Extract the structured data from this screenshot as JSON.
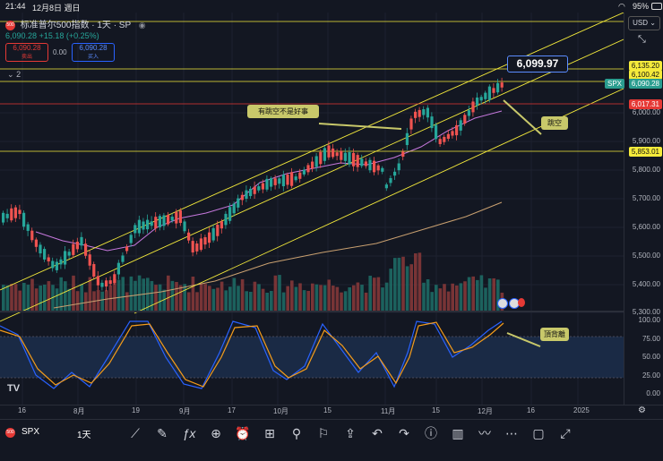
{
  "status_bar": {
    "time": "21:44",
    "date": "12月8日 週日",
    "battery": "95%"
  },
  "header": {
    "symbol_badge": "500",
    "title": "标准普尔500指数 · 1天 · SP",
    "last": "6,090.28",
    "change": "+15.18 (+0.25%)",
    "sell_price": "6,090.28",
    "sell_label": "卖出",
    "spread": "0.00",
    "buy_price": "6,090.28",
    "buy_label": "买入",
    "indicator_count": "2"
  },
  "currency": "USD",
  "price_axis": {
    "labels": [
      "6,000.00",
      "5,900.00",
      "5,800.00",
      "5,700.00",
      "5,600.00",
      "5,500.00",
      "5,400.00",
      "5,300.00"
    ],
    "tags": [
      {
        "text": "6,135.20",
        "color": "#f5eb3b"
      },
      {
        "text": "6,100.42",
        "color": "#f5eb3b"
      },
      {
        "text": "6,090.28",
        "color": "#2a9d8f"
      },
      {
        "text": "SPX",
        "color": "#2a9d8f"
      },
      {
        "text": "6,017.31",
        "color": "#e53935"
      },
      {
        "text": "5,853.01",
        "color": "#f5eb3b"
      }
    ]
  },
  "osc_axis": {
    "labels": [
      "100.00",
      "75.00",
      "50.00",
      "25.00",
      "0.00"
    ]
  },
  "time_axis": [
    "16",
    "8月",
    "19",
    "9月",
    "17",
    "10月",
    "15",
    "11月",
    "15",
    "12月",
    "16",
    "2025"
  ],
  "annotations": {
    "price_label": "6,099.97",
    "gap_note": "有跳空不是好事",
    "jump_note": "跳空",
    "top_note": "頂背離"
  },
  "bottom_bar": {
    "symbol": "SPX",
    "interval": "1天",
    "symbol_badge": "500"
  },
  "colors": {
    "up": "#26a69a",
    "down": "#ef5350",
    "channel": "#f5eb3b",
    "bg": "#131722"
  }
}
